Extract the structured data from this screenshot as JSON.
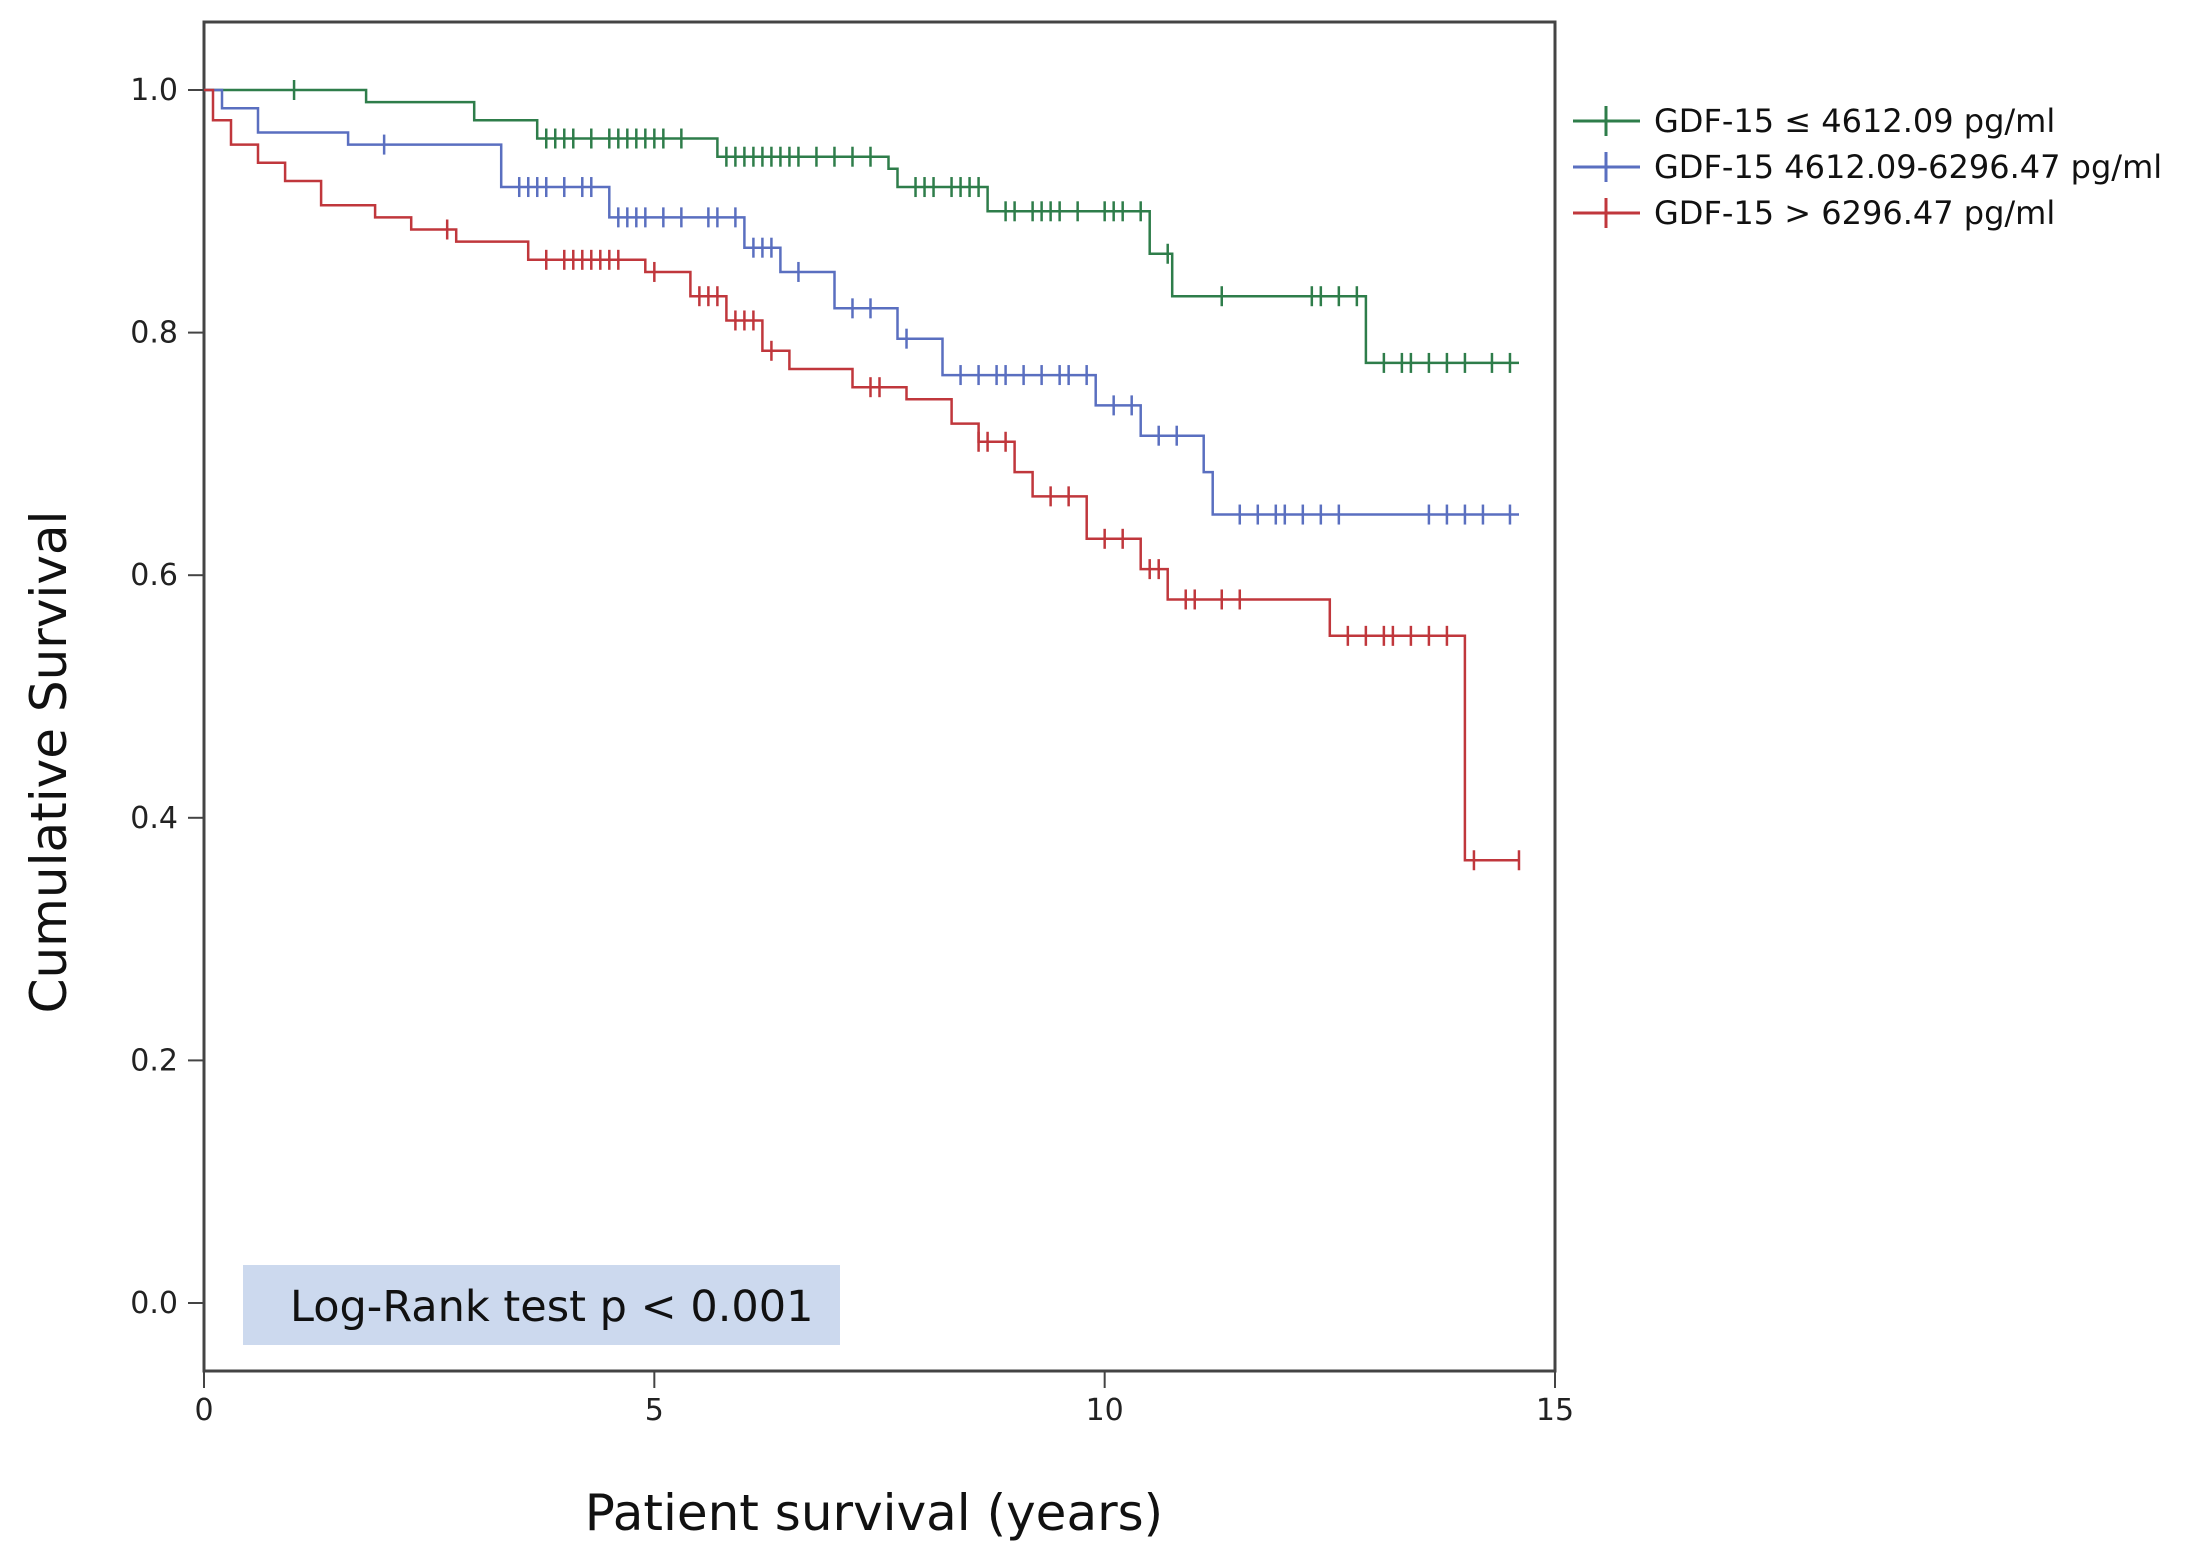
{
  "chart_data": {
    "type": "line",
    "subtype": "kaplan-meier",
    "title": "",
    "xlabel": "Patient survival (years)",
    "ylabel": "Cumulative Survival",
    "xlim": [
      0,
      15
    ],
    "ylim": [
      -0.05,
      1.05
    ],
    "xticks": [
      0,
      5,
      10,
      15
    ],
    "xtick_labels": [
      "0",
      "5",
      "10",
      "15"
    ],
    "yticks": [
      0.0,
      0.2,
      0.4,
      0.6,
      0.8,
      1.0
    ],
    "ytick_labels": [
      "0.0",
      "0.2",
      "0.4",
      "0.6",
      "0.8",
      "1.0"
    ],
    "grid": false,
    "legend_position": "right-top",
    "annotation": "Log-Rank test p < 0.001",
    "series": [
      {
        "name": "GDF-15 ≤ 4612.09 pg/ml",
        "color": "#2e7d4a",
        "steps": [
          [
            0,
            1.0
          ],
          [
            1.8,
            0.99
          ],
          [
            3.0,
            0.975
          ],
          [
            3.7,
            0.96
          ],
          [
            5.7,
            0.945
          ],
          [
            7.6,
            0.935
          ],
          [
            7.7,
            0.92
          ],
          [
            8.7,
            0.9
          ],
          [
            10.5,
            0.865
          ],
          [
            10.75,
            0.83
          ],
          [
            12.9,
            0.775
          ],
          [
            14.6,
            0.775
          ]
        ],
        "censored": [
          1.0,
          3.8,
          3.9,
          4.0,
          4.1,
          4.3,
          4.5,
          4.6,
          4.7,
          4.8,
          4.9,
          5.0,
          5.1,
          5.3,
          5.8,
          5.9,
          6.0,
          6.1,
          6.2,
          6.3,
          6.4,
          6.5,
          6.6,
          6.8,
          7.0,
          7.2,
          7.4,
          7.9,
          8.0,
          8.1,
          8.3,
          8.4,
          8.5,
          8.6,
          8.9,
          9.0,
          9.2,
          9.3,
          9.4,
          9.5,
          9.7,
          10.0,
          10.1,
          10.2,
          10.4,
          10.7,
          11.3,
          12.3,
          12.4,
          12.6,
          12.8,
          13.1,
          13.3,
          13.4,
          13.6,
          13.8,
          14.0,
          14.3,
          14.5
        ]
      },
      {
        "name": "GDF-15 4612.09-6296.47 pg/ml",
        "color": "#5a6fc0",
        "steps": [
          [
            0,
            1.0
          ],
          [
            0.2,
            0.985
          ],
          [
            0.6,
            0.965
          ],
          [
            1.6,
            0.955
          ],
          [
            3.3,
            0.92
          ],
          [
            4.5,
            0.895
          ],
          [
            6.0,
            0.87
          ],
          [
            6.4,
            0.85
          ],
          [
            7.0,
            0.82
          ],
          [
            7.7,
            0.795
          ],
          [
            8.2,
            0.765
          ],
          [
            9.9,
            0.74
          ],
          [
            10.4,
            0.715
          ],
          [
            11.1,
            0.685
          ],
          [
            11.2,
            0.65
          ],
          [
            14.6,
            0.65
          ]
        ],
        "censored": [
          2.0,
          3.5,
          3.6,
          3.7,
          3.8,
          4.0,
          4.2,
          4.3,
          4.6,
          4.7,
          4.8,
          4.9,
          5.1,
          5.3,
          5.6,
          5.7,
          5.9,
          6.1,
          6.2,
          6.3,
          6.6,
          7.2,
          7.4,
          7.8,
          8.4,
          8.6,
          8.8,
          8.9,
          9.1,
          9.3,
          9.5,
          9.6,
          9.8,
          10.1,
          10.3,
          10.6,
          10.8,
          11.5,
          11.7,
          11.9,
          12.0,
          12.2,
          12.4,
          12.6,
          13.6,
          13.8,
          14.0,
          14.2,
          14.5
        ]
      },
      {
        "name": "GDF-15 > 6296.47 pg/ml",
        "color": "#c0373c",
        "steps": [
          [
            0,
            1.0
          ],
          [
            0.1,
            0.975
          ],
          [
            0.3,
            0.955
          ],
          [
            0.6,
            0.94
          ],
          [
            0.9,
            0.925
          ],
          [
            1.3,
            0.905
          ],
          [
            1.9,
            0.895
          ],
          [
            2.3,
            0.885
          ],
          [
            2.8,
            0.875
          ],
          [
            3.6,
            0.86
          ],
          [
            4.9,
            0.85
          ],
          [
            5.4,
            0.83
          ],
          [
            5.8,
            0.81
          ],
          [
            6.2,
            0.785
          ],
          [
            6.5,
            0.77
          ],
          [
            7.2,
            0.755
          ],
          [
            7.8,
            0.745
          ],
          [
            8.3,
            0.725
          ],
          [
            8.6,
            0.71
          ],
          [
            9.0,
            0.685
          ],
          [
            9.2,
            0.665
          ],
          [
            9.8,
            0.63
          ],
          [
            10.4,
            0.605
          ],
          [
            10.7,
            0.58
          ],
          [
            12.5,
            0.55
          ],
          [
            14.0,
            0.365
          ],
          [
            14.6,
            0.365
          ]
        ],
        "censored": [
          2.7,
          3.8,
          4.0,
          4.1,
          4.2,
          4.3,
          4.4,
          4.5,
          4.6,
          5.0,
          5.5,
          5.6,
          5.7,
          5.9,
          6.0,
          6.1,
          6.3,
          7.4,
          7.5,
          8.6,
          8.7,
          8.9,
          9.4,
          9.6,
          10.0,
          10.2,
          10.5,
          10.6,
          10.9,
          11.0,
          11.3,
          11.5,
          12.7,
          12.9,
          13.1,
          13.2,
          13.4,
          13.6,
          13.8,
          14.1,
          14.6
        ]
      }
    ]
  }
}
